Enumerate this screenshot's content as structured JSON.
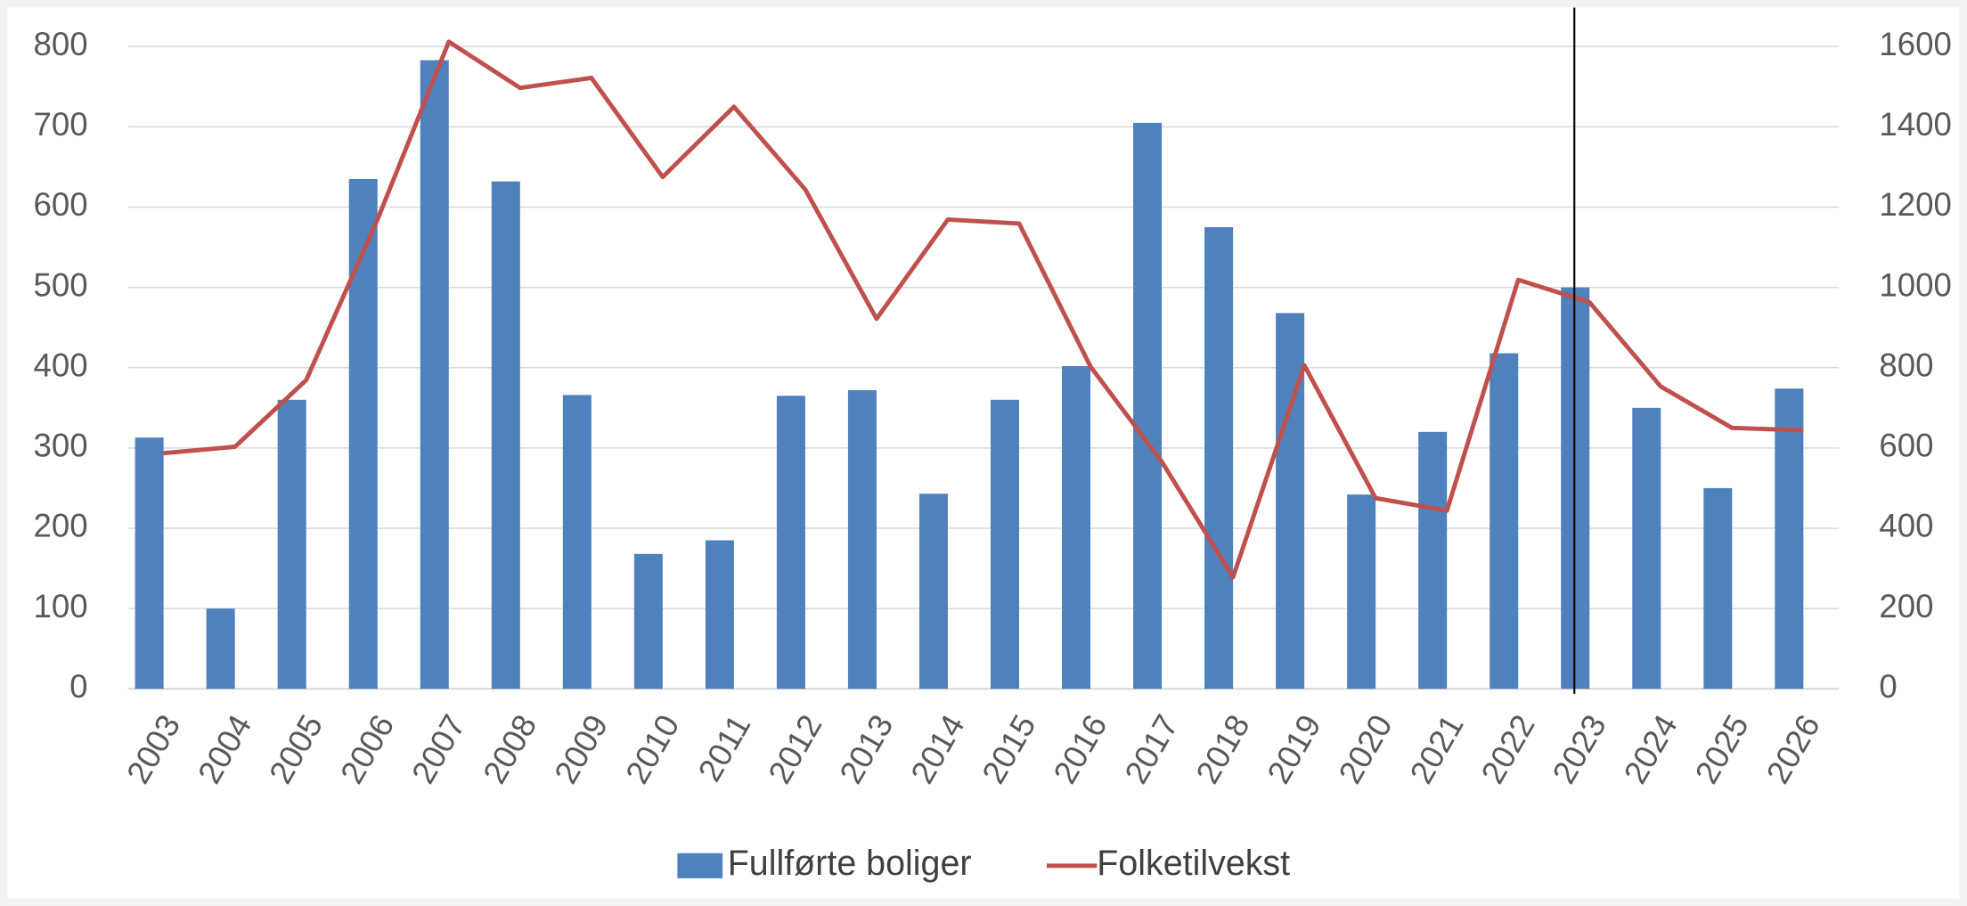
{
  "chart_data": {
    "type": "bar",
    "categories": [
      "2003",
      "2004",
      "2005",
      "2006",
      "2007",
      "2008",
      "2009",
      "2010",
      "2011",
      "2012",
      "2013",
      "2014",
      "2015",
      "2016",
      "2017",
      "2018",
      "2019",
      "2020",
      "2021",
      "2022",
      "2023",
      "2024",
      "2025",
      "2026"
    ],
    "series": [
      {
        "name": "Fullførte boliger",
        "type": "bar",
        "color": "#4f81bd",
        "values": [
          313,
          100,
          360,
          635,
          783,
          632,
          366,
          168,
          185,
          365,
          372,
          243,
          360,
          402,
          705,
          575,
          468,
          242,
          320,
          418,
          500,
          350,
          250,
          374
        ]
      },
      {
        "name": "Folketilvekst",
        "type": "line",
        "axis": "y2",
        "color": "#c0504d",
        "values": [
          587,
          603,
          769,
          1169,
          1612,
          1497,
          1522,
          1275,
          1450,
          1244,
          922,
          1169,
          1159,
          803,
          566,
          278,
          806,
          475,
          444,
          1019,
          963,
          753,
          650,
          644
        ]
      }
    ],
    "ylim": [
      0,
      800
    ],
    "yticks": [
      0,
      100,
      200,
      300,
      400,
      500,
      600,
      700,
      800
    ],
    "y2lim": [
      0,
      1600
    ],
    "y2ticks": [
      0,
      200,
      400,
      600,
      800,
      1000,
      1200,
      1400,
      1600
    ],
    "grid": true,
    "legend": "bottom"
  }
}
